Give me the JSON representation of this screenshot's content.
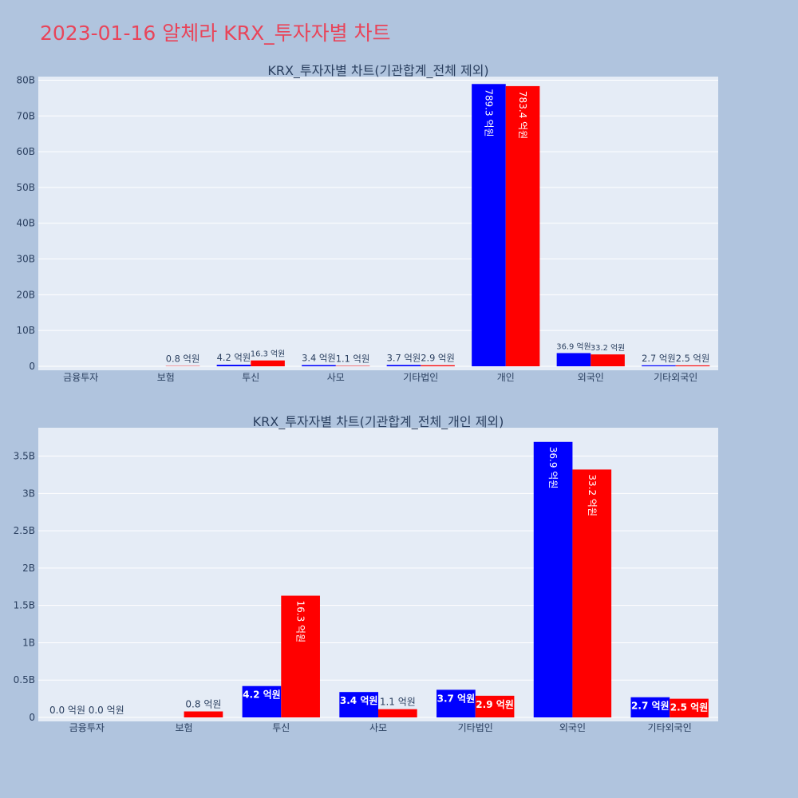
{
  "title": "2023-01-16 알체라 KRX_투자자별 차트",
  "colors": {
    "buy": "#0000ff",
    "sell": "#ff0000",
    "background": "#b0c4de",
    "plot": "#e5ecf6",
    "title": "#e8455a"
  },
  "chart_data": [
    {
      "type": "bar",
      "title": "KRX_투자자별 차트(기관합계_전체 제외)",
      "categories": [
        "금융투자",
        "보험",
        "투신",
        "사모",
        "기타법인",
        "개인",
        "외국인",
        "기타외국인"
      ],
      "series": [
        {
          "values": [
            0,
            0,
            420000000,
            340000000,
            370000000,
            78930000000,
            3690000000,
            270000000
          ],
          "labels": [
            "",
            "",
            "4.2 억원",
            "3.4 억원",
            "3.7 억원",
            "789.3 억원",
            "36.9 억원",
            "2.7 억원"
          ]
        },
        {
          "values": [
            0,
            80000000,
            1630000000,
            110000000,
            290000000,
            78340000000,
            3320000000,
            250000000
          ],
          "labels": [
            "",
            "0.8 억원",
            "16.3 억원",
            "1.1 억원",
            "2.9 억원",
            "783.4 억원",
            "33.2 억원",
            "2.5 억원"
          ]
        }
      ],
      "yticks": [
        "0",
        "10B",
        "20B",
        "30B",
        "40B",
        "50B",
        "60B",
        "70B",
        "80B"
      ],
      "ylim": [
        0,
        81000000000
      ]
    },
    {
      "type": "bar",
      "title": "KRX_투자자별 차트(기관합계_전체_개인 제외)",
      "categories": [
        "금융투자",
        "보험",
        "투신",
        "사모",
        "기타법인",
        "외국인",
        "기타외국인"
      ],
      "series": [
        {
          "values": [
            0,
            0,
            420000000,
            340000000,
            370000000,
            3690000000,
            270000000
          ],
          "labels": [
            "0.0 억원",
            "",
            "4.2 억원",
            "3.4 억원",
            "3.7 억원",
            "36.9 억원",
            "2.7 억원"
          ]
        },
        {
          "values": [
            0,
            80000000,
            1630000000,
            110000000,
            290000000,
            3320000000,
            250000000
          ],
          "labels": [
            "0.0 억원",
            "0.8 억원",
            "16.3 억원",
            "1.1 억원",
            "2.9 억원",
            "33.2 억원",
            "2.5 억원"
          ]
        }
      ],
      "yticks": [
        "0",
        "0.5B",
        "1B",
        "1.5B",
        "2B",
        "2.5B",
        "3B",
        "3.5B"
      ],
      "ylim": [
        0,
        3880000000
      ]
    }
  ]
}
